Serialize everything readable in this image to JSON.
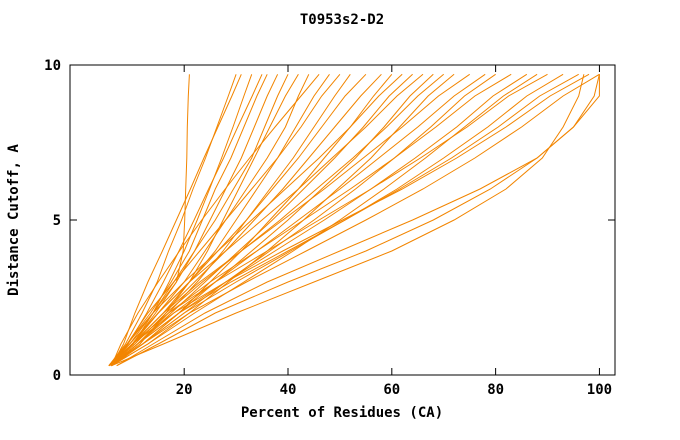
{
  "chart_data": {
    "type": "line",
    "title": "T0953s2-D2",
    "xlabel": "Percent of Residues (CA)",
    "ylabel": "Distance Cutoff, A",
    "xlim": [
      -2,
      103
    ],
    "ylim": [
      0,
      10
    ],
    "x_ticks": [
      20,
      40,
      60,
      80,
      100
    ],
    "y_ticks": [
      0,
      5,
      10
    ],
    "grid": false,
    "legend": "none",
    "line_color": "#f28500",
    "axis_color": "#000000",
    "y_levels": [
      0.3,
      1,
      2,
      3,
      4,
      5,
      6,
      7,
      8,
      9,
      9.7
    ],
    "series_x": [
      [
        5.5,
        9,
        14,
        18.5,
        19.8,
        20.1,
        20.3,
        20.5,
        20.6,
        20.8,
        21
      ],
      [
        5.5,
        8.7,
        11.9,
        14.8,
        17,
        19.5,
        21.7,
        24.1,
        26.3,
        28.5,
        30
      ],
      [
        6,
        8.3,
        10.5,
        13,
        15.8,
        18.5,
        21.2,
        23.8,
        26.5,
        29.2,
        31
      ],
      [
        5.8,
        10.2,
        14,
        17.1,
        20,
        22.5,
        24.9,
        27.2,
        29.4,
        31.5,
        33
      ],
      [
        6,
        9.2,
        12.8,
        16,
        19,
        21.9,
        24.7,
        27.6,
        30.3,
        33.1,
        35
      ],
      [
        5.5,
        9,
        13.5,
        17.5,
        21,
        23.5,
        26,
        29,
        31.5,
        34,
        36
      ],
      [
        6,
        10,
        14.5,
        18.5,
        22,
        25,
        28,
        31,
        33.5,
        36,
        38
      ],
      [
        5.5,
        9.5,
        14,
        18,
        22,
        26,
        29.5,
        33,
        35.5,
        38,
        40
      ],
      [
        6,
        11.5,
        16.5,
        21,
        24.5,
        27.5,
        30.5,
        33.5,
        36.5,
        39.5,
        42
      ],
      [
        6,
        10,
        15,
        20,
        24,
        28,
        32,
        36,
        39.5,
        42,
        44
      ],
      [
        6,
        7.8,
        11.1,
        15,
        19.1,
        23.4,
        27.9,
        32.6,
        37.5,
        42.5,
        46
      ],
      [
        5.5,
        10,
        16,
        21,
        26,
        30,
        34,
        38,
        41.5,
        45,
        48
      ],
      [
        6,
        9,
        13,
        18,
        23,
        28,
        33,
        38,
        42.5,
        46.5,
        50
      ],
      [
        6,
        11,
        17,
        22.5,
        27.5,
        32,
        36.5,
        41,
        45,
        49,
        52
      ],
      [
        5.5,
        9.5,
        15,
        21,
        26.5,
        32,
        37,
        42,
        46.5,
        51,
        55
      ],
      [
        6,
        10,
        16,
        22,
        28,
        33.5,
        39,
        44,
        49,
        54,
        58
      ],
      [
        6,
        12,
        19,
        25,
        31,
        36.5,
        42,
        47,
        52,
        56.5,
        60
      ],
      [
        5.5,
        9,
        14,
        20,
        26.5,
        33,
        39.5,
        46,
        52,
        57.5,
        62
      ],
      [
        6,
        11,
        17.5,
        24,
        30.5,
        37,
        43,
        49,
        54.5,
        59.5,
        64
      ],
      [
        6,
        10,
        15,
        21,
        28,
        35,
        42,
        48.5,
        55,
        61,
        66
      ],
      [
        5.5,
        12,
        19,
        26,
        33,
        40,
        46.5,
        53,
        58.5,
        63.5,
        68
      ],
      [
        6,
        10.5,
        16.5,
        23.5,
        31,
        38.5,
        45.5,
        52.5,
        59,
        65,
        70
      ],
      [
        6,
        13,
        21,
        28.5,
        36,
        43,
        49.5,
        56,
        61.5,
        67,
        72
      ],
      [
        5.5,
        10,
        16,
        23,
        31,
        39,
        47,
        54.5,
        62,
        69,
        75
      ],
      [
        6,
        11,
        18,
        26,
        34,
        42,
        50,
        57.5,
        65,
        72,
        78
      ],
      [
        6,
        12,
        20,
        28,
        36.5,
        45,
        53,
        60.5,
        67.5,
        74,
        80
      ],
      [
        5.5,
        10,
        17,
        25,
        34,
        43,
        52,
        60.5,
        68.5,
        76,
        83
      ],
      [
        6,
        11,
        19,
        28,
        37.5,
        47,
        56,
        64.5,
        72.5,
        79.5,
        86
      ],
      [
        6,
        13,
        22,
        31.5,
        41,
        50,
        58.5,
        66.5,
        74,
        81.5,
        88
      ],
      [
        5.5,
        10,
        17,
        26,
        36,
        46,
        56,
        65.5,
        74.5,
        82.5,
        90
      ],
      [
        6,
        12,
        20,
        30,
        40.5,
        51,
        61,
        70,
        78.5,
        86,
        93
      ],
      [
        6,
        11,
        19,
        29,
        40,
        51,
        61.5,
        71.5,
        80.5,
        88.5,
        96
      ],
      [
        5.5,
        10,
        18,
        28,
        39,
        50.5,
        62,
        72.5,
        82,
        90.5,
        98
      ],
      [
        6,
        12,
        21,
        32,
        43.5,
        55,
        66,
        76,
        85,
        93,
        100
      ],
      [
        7,
        14,
        24,
        36,
        50,
        64,
        77,
        88,
        95,
        99,
        100
      ],
      [
        6,
        16,
        30,
        45,
        60,
        72,
        82,
        89,
        93,
        96,
        97
      ],
      [
        7,
        15,
        26,
        40,
        55,
        68,
        79,
        88,
        95,
        100,
        100
      ]
    ]
  }
}
